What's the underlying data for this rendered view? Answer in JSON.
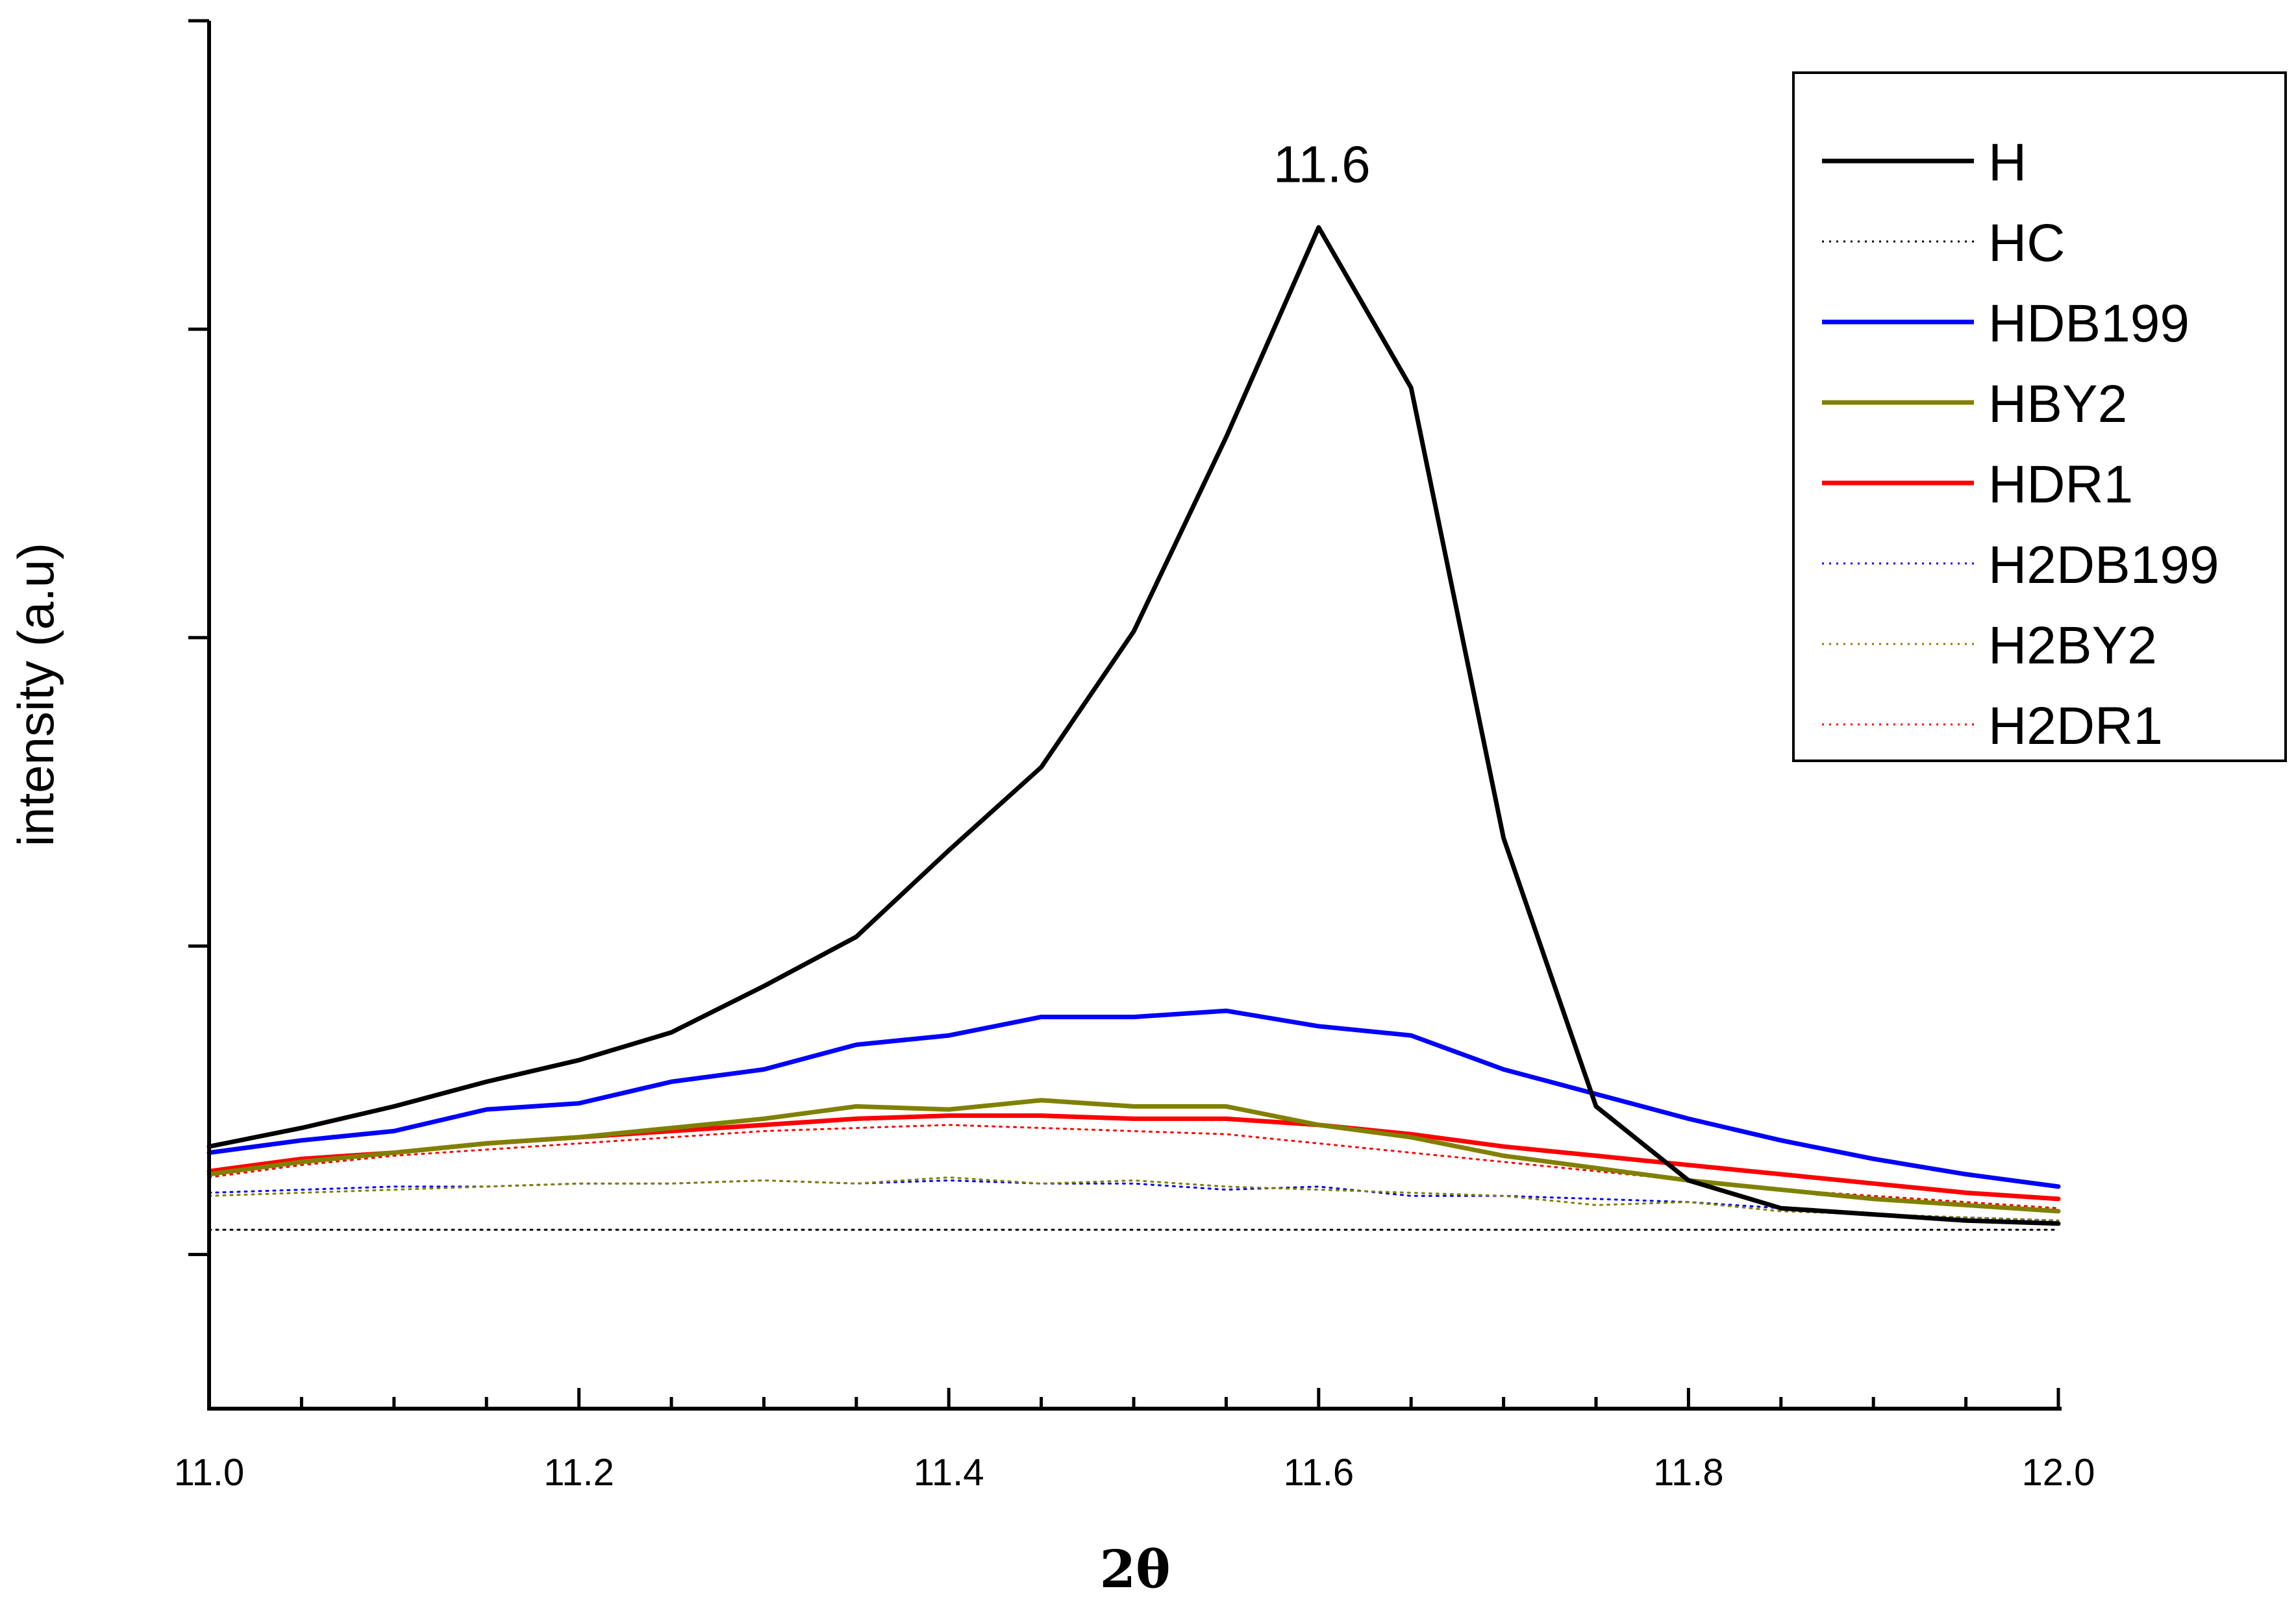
{
  "chart_data": {
    "type": "line",
    "xlabel": "2θ",
    "ylabel": "intensity (a.u)",
    "xlim": [
      11.0,
      12.0
    ],
    "ylim": [
      -0.5,
      4.0
    ],
    "x_ticks": [
      "11.0",
      "11.2",
      "11.4",
      "11.6",
      "11.8",
      "12.0"
    ],
    "y_ticks_labeled": false,
    "legend_position": "top-right",
    "annotations": [
      {
        "text": "11.6",
        "x": 11.6,
        "y": 3.33
      }
    ],
    "x": [
      11.0,
      11.05,
      11.1,
      11.15,
      11.2,
      11.25,
      11.3,
      11.35,
      11.4,
      11.45,
      11.5,
      11.55,
      11.6,
      11.65,
      11.7,
      11.75,
      11.8,
      11.85,
      11.9,
      11.95,
      12.0
    ],
    "series": [
      {
        "name": "H",
        "color": "#000000",
        "style": "solid",
        "values": [
          0.35,
          0.41,
          0.48,
          0.56,
          0.63,
          0.72,
          0.87,
          1.03,
          1.31,
          1.58,
          2.02,
          2.65,
          3.33,
          2.81,
          1.35,
          0.48,
          0.24,
          0.15,
          0.13,
          0.11,
          0.1
        ]
      },
      {
        "name": "HC",
        "color": "#000000",
        "style": "dotted",
        "values": [
          0.08,
          0.08,
          0.08,
          0.08,
          0.08,
          0.08,
          0.08,
          0.08,
          0.08,
          0.08,
          0.08,
          0.08,
          0.08,
          0.08,
          0.08,
          0.08,
          0.08,
          0.08,
          0.08,
          0.08,
          0.08
        ]
      },
      {
        "name": "HDB199",
        "color": "#0000ff",
        "style": "solid",
        "values": [
          0.33,
          0.37,
          0.4,
          0.47,
          0.49,
          0.56,
          0.6,
          0.68,
          0.71,
          0.77,
          0.77,
          0.79,
          0.74,
          0.71,
          0.6,
          0.52,
          0.44,
          0.37,
          0.31,
          0.26,
          0.22
        ]
      },
      {
        "name": "HBY2",
        "color": "#808000",
        "style": "solid",
        "values": [
          0.26,
          0.3,
          0.33,
          0.36,
          0.38,
          0.41,
          0.44,
          0.48,
          0.47,
          0.5,
          0.48,
          0.48,
          0.42,
          0.38,
          0.32,
          0.28,
          0.24,
          0.21,
          0.18,
          0.16,
          0.14
        ]
      },
      {
        "name": "HDR1",
        "color": "#ff0000",
        "style": "solid",
        "values": [
          0.27,
          0.31,
          0.33,
          0.36,
          0.38,
          0.4,
          0.42,
          0.44,
          0.45,
          0.45,
          0.44,
          0.44,
          0.42,
          0.39,
          0.35,
          0.32,
          0.29,
          0.26,
          0.23,
          0.2,
          0.18
        ]
      },
      {
        "name": "H2DB199",
        "color": "#0000ff",
        "style": "dotted",
        "values": [
          0.2,
          0.21,
          0.22,
          0.22,
          0.23,
          0.23,
          0.24,
          0.23,
          0.24,
          0.23,
          0.23,
          0.21,
          0.22,
          0.19,
          0.19,
          0.18,
          0.17,
          0.15,
          0.13,
          0.12,
          0.11
        ]
      },
      {
        "name": "H2BY2",
        "color": "#808000",
        "style": "dotted",
        "values": [
          0.19,
          0.2,
          0.21,
          0.22,
          0.23,
          0.23,
          0.24,
          0.23,
          0.25,
          0.23,
          0.24,
          0.22,
          0.21,
          0.2,
          0.19,
          0.16,
          0.17,
          0.14,
          0.13,
          0.12,
          0.11
        ]
      },
      {
        "name": "H2DR1",
        "color": "#ff0000",
        "style": "dotted",
        "values": [
          0.25,
          0.29,
          0.32,
          0.34,
          0.36,
          0.38,
          0.4,
          0.41,
          0.42,
          0.41,
          0.4,
          0.39,
          0.36,
          0.33,
          0.3,
          0.27,
          0.24,
          0.21,
          0.19,
          0.17,
          0.15
        ]
      }
    ]
  }
}
